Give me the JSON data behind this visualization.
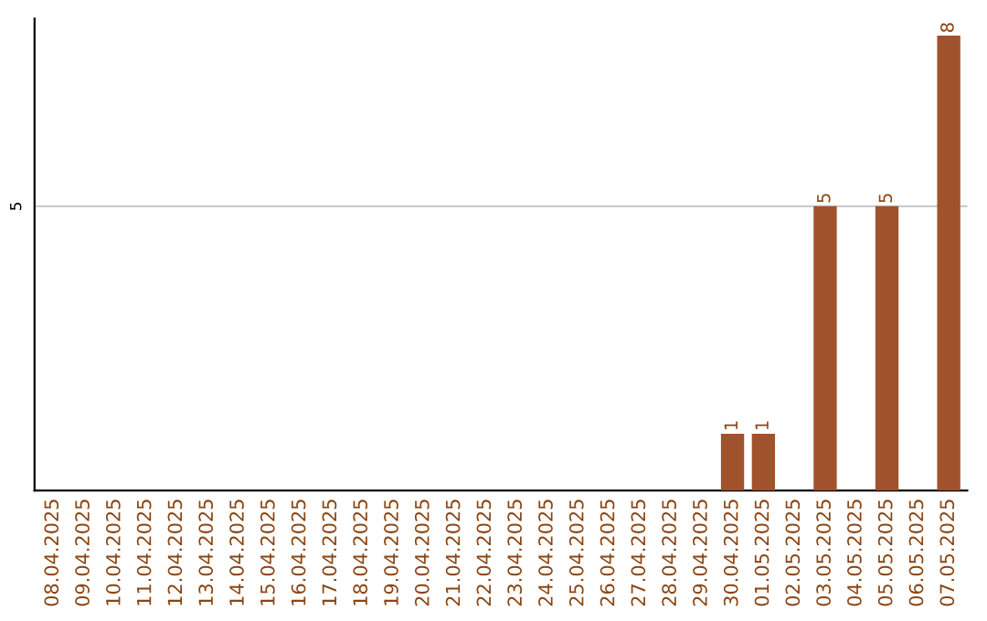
{
  "chart_data": {
    "type": "bar",
    "categories": [
      "08.04.2025",
      "09.04.2025",
      "10.04.2025",
      "11.04.2025",
      "12.04.2025",
      "13.04.2025",
      "14.04.2025",
      "15.04.2025",
      "16.04.2025",
      "17.04.2025",
      "18.04.2025",
      "19.04.2025",
      "20.04.2025",
      "21.04.2025",
      "22.04.2025",
      "23.04.2025",
      "24.04.2025",
      "25.04.2025",
      "26.04.2025",
      "27.04.2025",
      "28.04.2025",
      "29.04.2025",
      "30.04.2025",
      "01.05.2025",
      "02.05.2025",
      "03.05.2025",
      "04.05.2025",
      "05.05.2025",
      "06.05.2025",
      "07.05.2025"
    ],
    "values": [
      null,
      null,
      null,
      null,
      null,
      null,
      null,
      null,
      null,
      null,
      null,
      null,
      null,
      null,
      null,
      null,
      null,
      null,
      null,
      null,
      null,
      null,
      1,
      1,
      null,
      5,
      null,
      5,
      null,
      8
    ],
    "value_labels": [
      null,
      null,
      null,
      null,
      null,
      null,
      null,
      null,
      null,
      null,
      null,
      null,
      null,
      null,
      null,
      null,
      null,
      null,
      null,
      null,
      null,
      null,
      "1",
      "1",
      null,
      "5",
      null,
      "5",
      null,
      "8"
    ],
    "color": "#a0522d",
    "ylim": [
      0,
      8.3
    ],
    "yticks": [
      5
    ],
    "grid": "y",
    "legend": false
  }
}
